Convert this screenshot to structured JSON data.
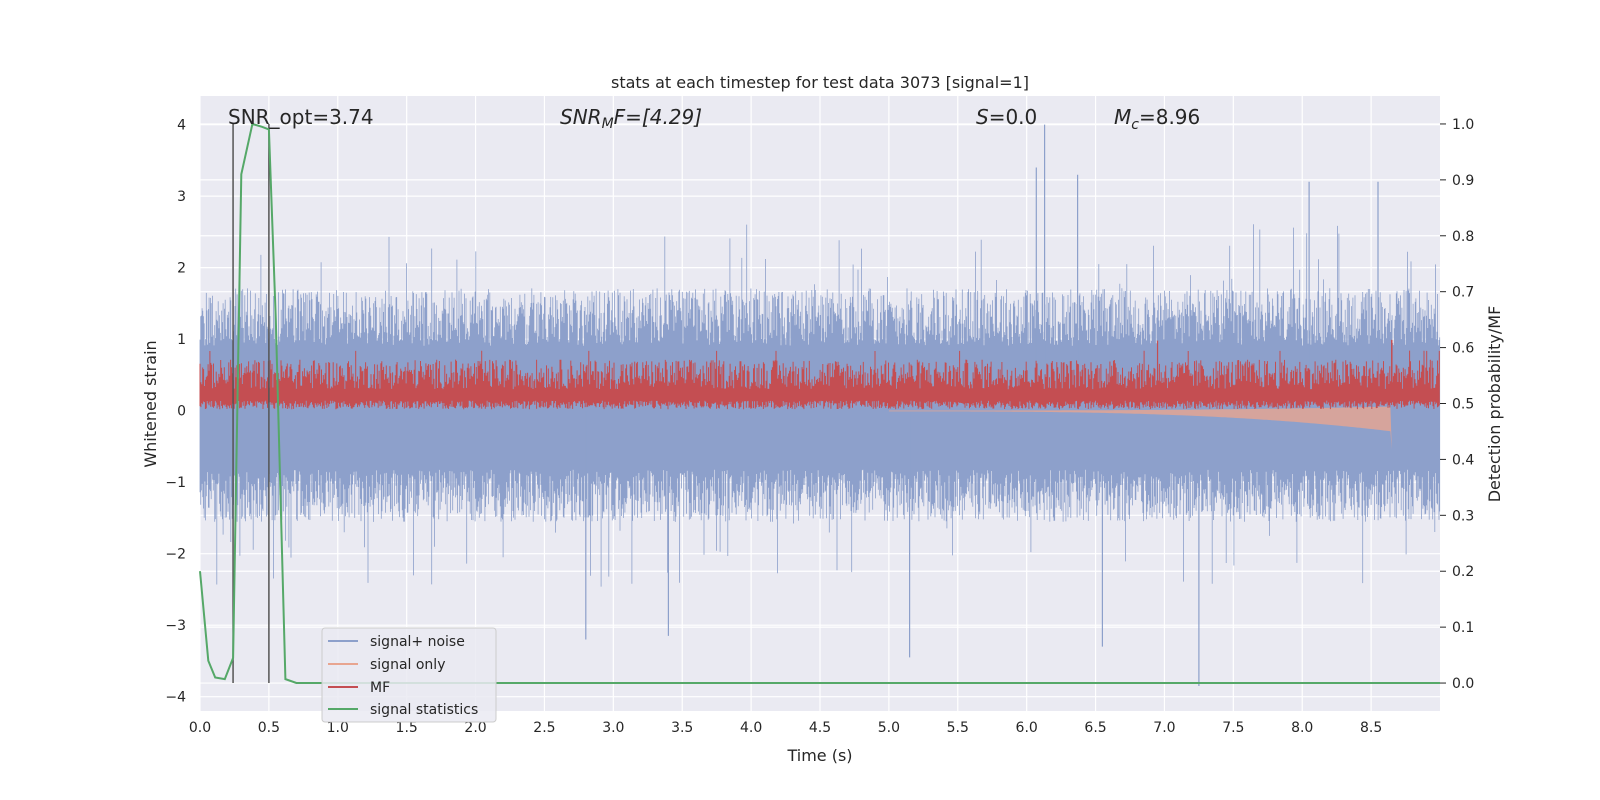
{
  "chart_data": {
    "type": "line",
    "title": "stats at each timestep for test data 3073 [signal=1]",
    "xlabel": "Time (s)",
    "ylabel": "Whitened strain",
    "y2label": "Detection probability/MF",
    "xlim": [
      0,
      9.0
    ],
    "ylim": [
      -4.2,
      4.4
    ],
    "y2lim": [
      -0.05,
      1.05
    ],
    "xticks": [
      0.0,
      0.5,
      1.0,
      1.5,
      2.0,
      2.5,
      3.0,
      3.5,
      4.0,
      4.5,
      5.0,
      5.5,
      6.0,
      6.5,
      7.0,
      7.5,
      8.0,
      8.5
    ],
    "xtick_labels": [
      "0.0",
      "0.5",
      "1.0",
      "1.5",
      "2.0",
      "2.5",
      "3.0",
      "3.5",
      "4.0",
      "4.5",
      "5.0",
      "5.5",
      "6.0",
      "6.5",
      "7.0",
      "7.5",
      "8.0",
      "8.5"
    ],
    "yticks": [
      4,
      3,
      2,
      1,
      0,
      -1,
      -2,
      -3,
      -4
    ],
    "ytick_labels": [
      "4",
      "3",
      "2",
      "1",
      "0",
      "−1",
      "−2",
      "−3",
      "−4"
    ],
    "y2ticks": [
      1.0,
      0.9,
      0.8,
      0.7,
      0.6,
      0.5,
      0.4,
      0.3,
      0.2,
      0.1,
      0.0
    ],
    "y2tick_labels": [
      "1.0",
      "0.9",
      "0.8",
      "0.7",
      "0.6",
      "0.5",
      "0.4",
      "0.3",
      "0.2",
      "0.1",
      "0.0"
    ],
    "grid": true,
    "legend_position": "lower-left",
    "annotations": {
      "snr_opt": "SNR_opt=3.74",
      "snr_mf_main": "SNR",
      "snr_mf_sub": "M",
      "snr_mf_rest": "F=[4.29]",
      "s_main": "S",
      "s_rest": "=0.0",
      "mc_main": "M",
      "mc_sub": "c",
      "mc_rest": "=8.96"
    },
    "vlines_x": [
      0.24,
      0.5
    ],
    "series": [
      {
        "name": "signal+ noise",
        "color": "#8da0cb",
        "axis": "left",
        "kind": "noise",
        "envelope_upper": 1.65,
        "envelope_lower": -1.5,
        "spike_max": 4.0,
        "spike_min": -3.85,
        "notable_spikes": [
          [
            6.13,
            4.0
          ],
          [
            6.07,
            3.4
          ],
          [
            6.37,
            3.3
          ],
          [
            8.55,
            3.2
          ],
          [
            8.05,
            3.2
          ],
          [
            7.25,
            -3.85
          ],
          [
            5.15,
            -3.45
          ],
          [
            6.55,
            -3.3
          ],
          [
            2.8,
            -3.2
          ],
          [
            3.4,
            -3.15
          ]
        ]
      },
      {
        "name": "signal only",
        "color": "#e8a590",
        "axis": "left",
        "kind": "chirp",
        "x_end": 8.65,
        "min_value": -0.55
      },
      {
        "name": "MF",
        "color": "#c44e52",
        "axis": "left",
        "kind": "band",
        "band_low": 0.0,
        "band_high": 0.7,
        "peak_value": 0.99
      },
      {
        "name": "signal statistics",
        "color": "#55a868",
        "axis": "right",
        "kind": "line",
        "x": [
          0.0,
          0.06,
          0.11,
          0.18,
          0.24,
          0.3,
          0.38,
          0.45,
          0.5,
          0.55,
          0.62,
          0.7,
          1.0,
          9.0
        ],
        "values": [
          0.2,
          0.04,
          0.01,
          0.007,
          0.045,
          0.91,
          1.0,
          0.995,
          0.99,
          0.65,
          0.007,
          0.0,
          0.0,
          0.0
        ]
      }
    ]
  }
}
